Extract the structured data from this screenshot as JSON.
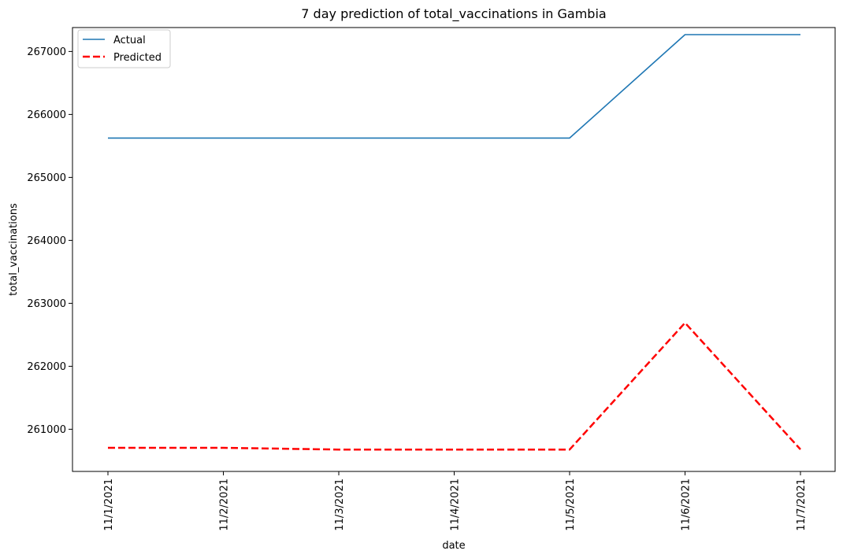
{
  "chart_data": {
    "type": "line",
    "title": "7 day prediction of total_vaccinations in Gambia",
    "xlabel": "date",
    "ylabel": "total_vaccinations",
    "categories": [
      "11/1/2021",
      "11/2/2021",
      "11/3/2021",
      "11/4/2021",
      "11/5/2021",
      "11/6/2021",
      "11/7/2021"
    ],
    "yticks": [
      261000,
      262000,
      263000,
      264000,
      265000,
      266000,
      267000
    ],
    "ylim": [
      260330,
      267380
    ],
    "grid": false,
    "legend_position": "top-left",
    "series": [
      {
        "name": "Actual",
        "color": "#1f77b4",
        "style": "solid",
        "values": [
          265625,
          265625,
          265625,
          265625,
          265625,
          267268,
          267268
        ]
      },
      {
        "name": "Predicted",
        "color": "#ff0000",
        "style": "dashed",
        "values": [
          260705,
          260705,
          260677,
          260677,
          260677,
          262690,
          260680
        ]
      }
    ]
  }
}
